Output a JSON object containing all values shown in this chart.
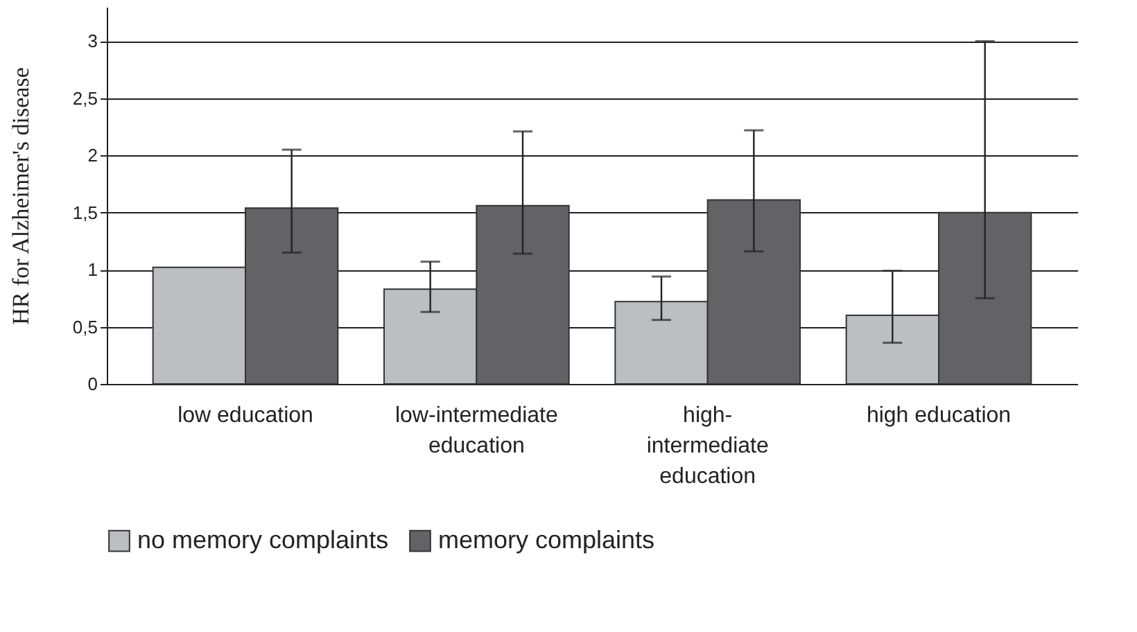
{
  "chart_data": {
    "type": "bar",
    "ylabel": "HR for Alzheimer's disease",
    "categories": [
      "low education",
      "low-intermediate education",
      "high-intermediate education",
      "high education"
    ],
    "series": [
      {
        "name": "no memory complaints",
        "color": "#bdbec2",
        "values": [
          1.02,
          0.83,
          0.72,
          0.6
        ],
        "errors": [
          null,
          [
            0.63,
            1.07
          ],
          [
            0.56,
            0.94
          ],
          [
            0.36,
            0.99
          ]
        ]
      },
      {
        "name": "memory complaints",
        "color": "#636365",
        "values": [
          1.54,
          1.56,
          1.61,
          1.5
        ],
        "errors": [
          [
            1.15,
            2.05
          ],
          [
            1.14,
            2.21
          ],
          [
            1.16,
            2.22
          ],
          [
            0.75,
            3.0
          ]
        ]
      }
    ],
    "ylim": [
      0,
      3.3
    ],
    "yticks": [
      0,
      {
        "value": 0.5,
        "label": "0,5"
      },
      1,
      {
        "value": 1.5,
        "label": "1,5"
      },
      2,
      {
        "value": 2.5,
        "label": "2,5"
      },
      3
    ],
    "grid": "y",
    "legend": "bottom"
  }
}
